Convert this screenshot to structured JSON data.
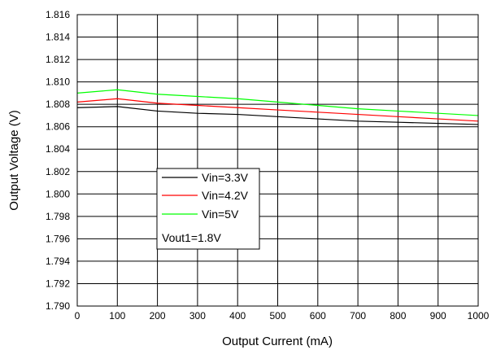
{
  "chart_data": {
    "type": "line",
    "xlabel": "Output Current (mA)",
    "ylabel": "Output Voltage (V)",
    "xlim": [
      0,
      1000
    ],
    "ylim": [
      1.79,
      1.816
    ],
    "x_ticks": [
      "0",
      "100",
      "200",
      "300",
      "400",
      "500",
      "600",
      "700",
      "800",
      "900",
      "1000"
    ],
    "y_ticks": [
      "1.790",
      "1.792",
      "1.794",
      "1.796",
      "1.798",
      "1.800",
      "1.802",
      "1.804",
      "1.806",
      "1.808",
      "1.810",
      "1.812",
      "1.814",
      "1.816"
    ],
    "grid": true,
    "legend_position": "left-center",
    "x": [
      0,
      100,
      200,
      300,
      400,
      500,
      600,
      700,
      800,
      900,
      1000
    ],
    "series": [
      {
        "name": "Vin=3.3V",
        "color": "#000000",
        "values": [
          1.8077,
          1.8078,
          1.8074,
          1.8072,
          1.8071,
          1.8069,
          1.8067,
          1.8065,
          1.8064,
          1.8063,
          1.8062
        ]
      },
      {
        "name": "Vin=4.2V",
        "color": "#ff0000",
        "values": [
          1.8082,
          1.8085,
          1.8081,
          1.8079,
          1.8077,
          1.8075,
          1.8073,
          1.8071,
          1.8069,
          1.8067,
          1.8065
        ]
      },
      {
        "name": "Vin=5V",
        "color": "#00ff00",
        "values": [
          1.809,
          1.8093,
          1.8089,
          1.8087,
          1.8085,
          1.8082,
          1.8079,
          1.8076,
          1.8074,
          1.8072,
          1.807
        ]
      }
    ],
    "annotations": [
      "Vout1=1.8V"
    ]
  }
}
